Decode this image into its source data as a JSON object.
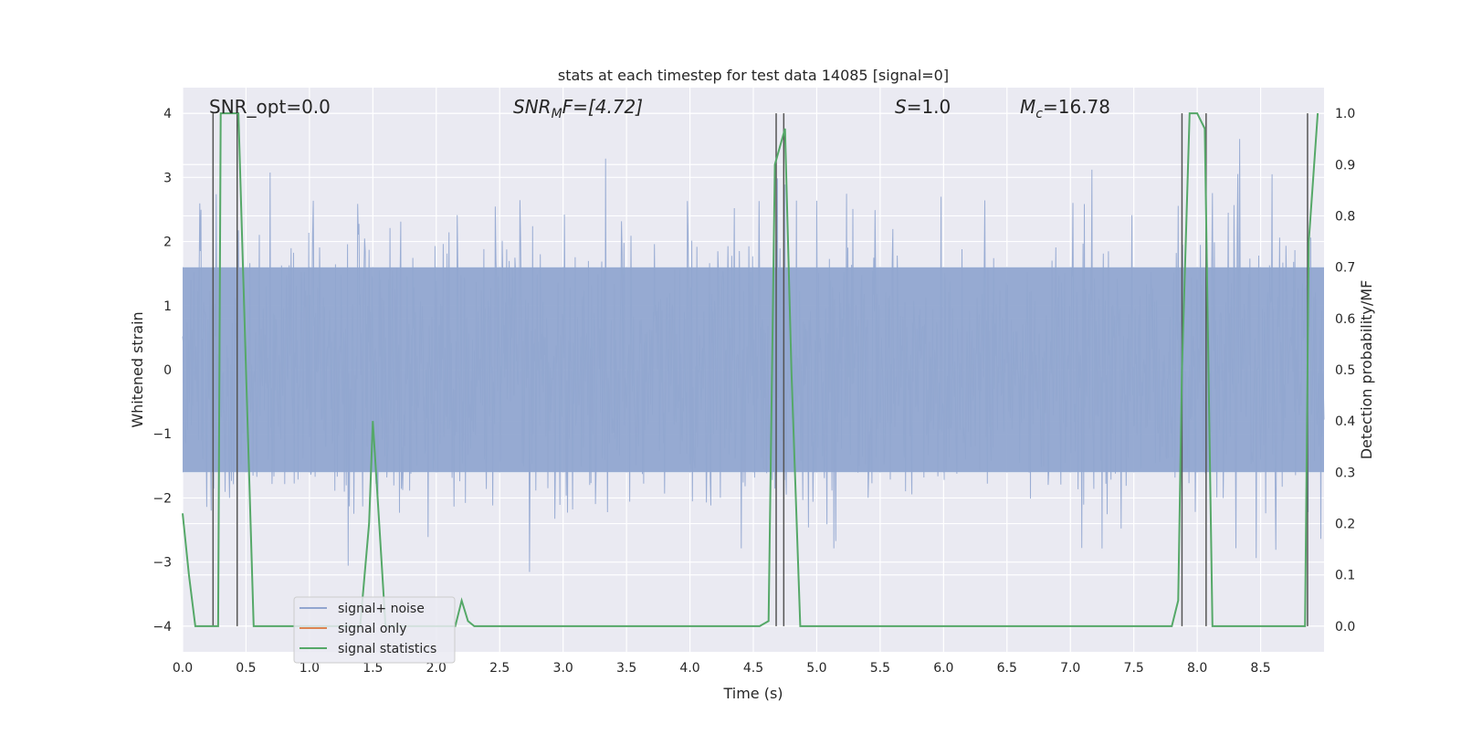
{
  "chart_data": {
    "type": "line",
    "title": "stats at each timestep for test data 14085 [signal=0]",
    "xlabel": "Time (s)",
    "ylabel": "Whitened strain",
    "ylabel_right": "Detection probability/MF",
    "xlim": [
      0.0,
      9.0
    ],
    "ylim": [
      -4.4,
      4.4
    ],
    "ylim_right": [
      -0.05,
      1.05
    ],
    "grid": true,
    "x_ticks": [
      "0.0",
      "0.5",
      "1.0",
      "1.5",
      "2.0",
      "2.5",
      "3.0",
      "3.5",
      "4.0",
      "4.5",
      "5.0",
      "5.5",
      "6.0",
      "6.5",
      "7.0",
      "7.5",
      "8.0",
      "8.5"
    ],
    "x_tick_values": [
      0.0,
      0.5,
      1.0,
      1.5,
      2.0,
      2.5,
      3.0,
      3.5,
      4.0,
      4.5,
      5.0,
      5.5,
      6.0,
      6.5,
      7.0,
      7.5,
      8.0,
      8.5
    ],
    "y_ticks": [
      "4",
      "3",
      "2",
      "1",
      "0",
      "−1",
      "−2",
      "−3",
      "−4"
    ],
    "y_tick_values": [
      4,
      3,
      2,
      1,
      0,
      -1,
      -2,
      -3,
      -4
    ],
    "y2_ticks": [
      "1.0",
      "0.9",
      "0.8",
      "0.7",
      "0.6",
      "0.5",
      "0.4",
      "0.3",
      "0.2",
      "0.1",
      "0.0"
    ],
    "y2_tick_values": [
      1.0,
      0.9,
      0.8,
      0.7,
      0.6,
      0.5,
      0.4,
      0.3,
      0.2,
      0.1,
      0.0
    ],
    "legend_position": "lower-left",
    "annotations": {
      "snr_opt": "SNR_opt=0.0",
      "snr_mf_main": "SNR",
      "snr_mf_sub": "M",
      "snr_mf_rest": "F=[4.72]",
      "s_var": "S",
      "s_val": "=1.0",
      "mc_var": "M",
      "mc_sub": "c",
      "mc_val": "=16.78"
    },
    "series": [
      {
        "name": "signal+ noise",
        "color": "#91a6d0",
        "style": "noise-fill",
        "sample_rate": 200,
        "envelope": {
          "core_low": -1.6,
          "core_high": 1.6,
          "peak_max": 3.6,
          "peak_min": -4.0
        }
      },
      {
        "name": "signal only",
        "color": "#dd8452",
        "values": []
      },
      {
        "name": "signal statistics",
        "color": "#55a868",
        "axis": "right",
        "x": [
          0.0,
          0.05,
          0.1,
          0.2,
          0.25,
          0.28,
          0.3,
          0.42,
          0.44,
          0.5,
          0.56,
          0.6,
          1.0,
          1.2,
          1.3,
          1.4,
          1.47,
          1.5,
          1.55,
          1.6,
          1.8,
          1.9,
          2.0,
          2.1,
          2.15,
          2.2,
          2.25,
          2.3,
          2.6,
          3.0,
          4.0,
          4.55,
          4.62,
          4.67,
          4.75,
          4.8,
          4.87,
          5.0,
          6.0,
          7.0,
          7.8,
          7.85,
          7.88,
          7.94,
          8.0,
          8.06,
          8.12,
          8.2,
          8.6,
          8.85,
          8.88,
          8.95
        ],
        "y": [
          0.22,
          0.1,
          0.0,
          0.0,
          0.0,
          0.0,
          1.0,
          1.0,
          1.0,
          0.5,
          0.0,
          0.0,
          0.0,
          0.0,
          0.0,
          0.0,
          0.2,
          0.4,
          0.2,
          0.0,
          0.0,
          0.0,
          0.0,
          0.0,
          0.0,
          0.05,
          0.01,
          0.0,
          0.0,
          0.0,
          0.0,
          0.0,
          0.01,
          0.9,
          0.97,
          0.5,
          0.0,
          0.0,
          0.0,
          0.0,
          0.0,
          0.05,
          0.5,
          1.0,
          1.0,
          0.97,
          0.0,
          0.0,
          0.0,
          0.0,
          0.75,
          1.0
        ]
      }
    ],
    "vertical_lines": {
      "color": "#555555",
      "x": [
        0.24,
        0.43,
        4.68,
        4.74,
        7.88,
        8.07,
        8.87
      ]
    }
  }
}
